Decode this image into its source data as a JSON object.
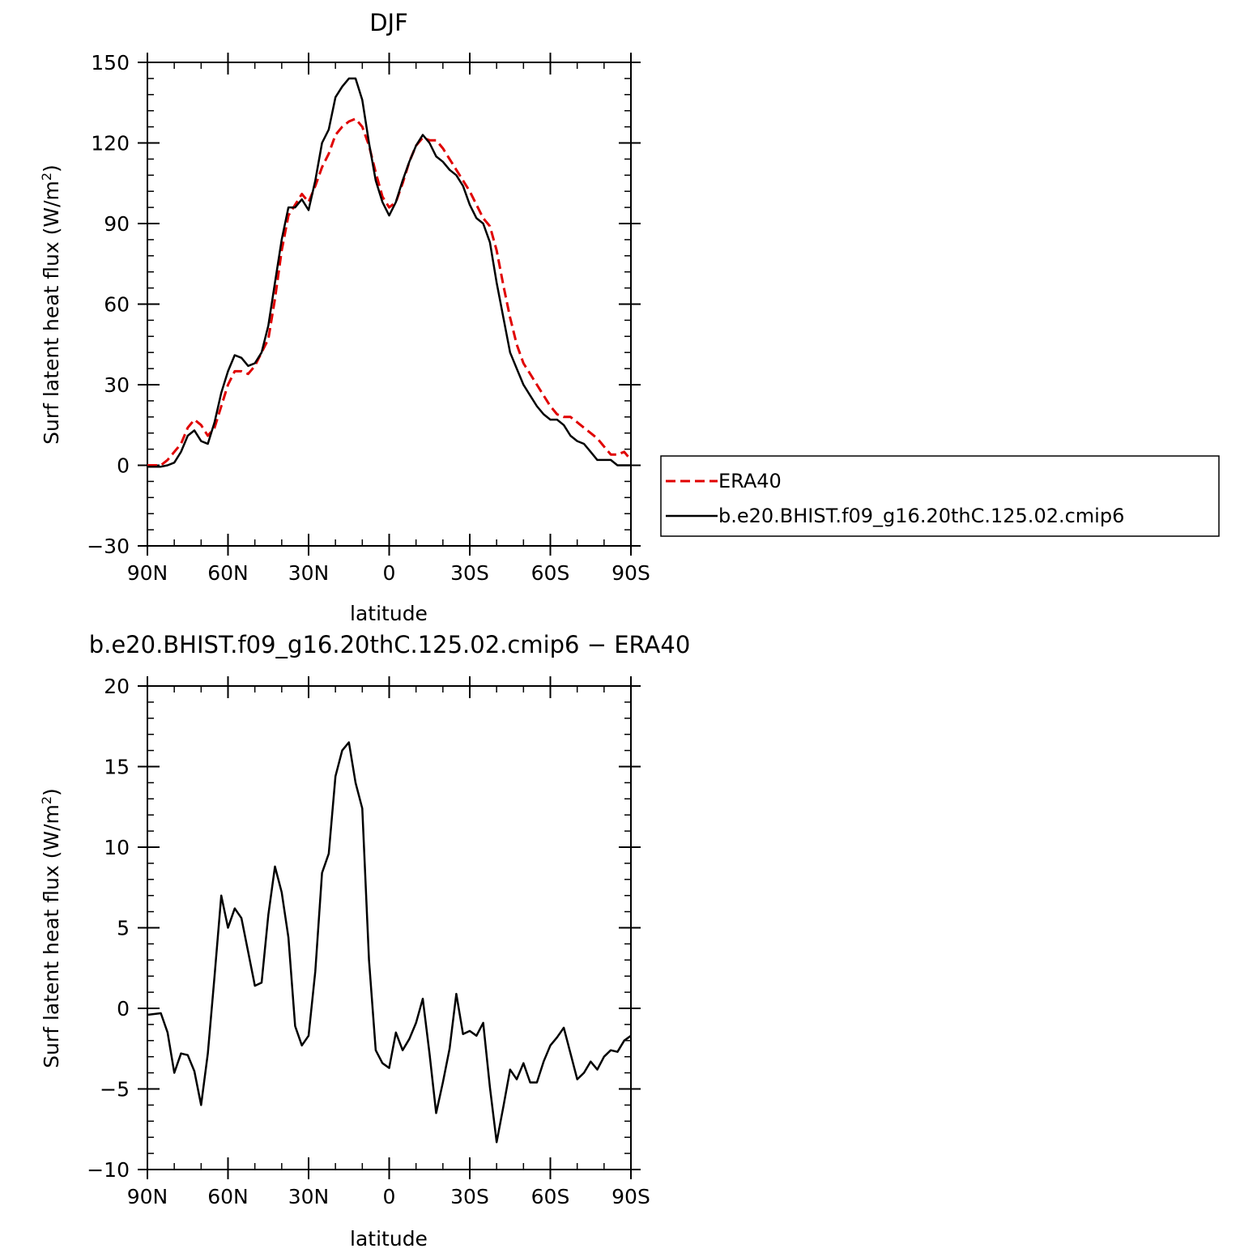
{
  "chart_data": [
    {
      "type": "line",
      "title": "DJF",
      "xlabel": "latitude",
      "ylabel_prefix": "Surf latent heat flux (W/m",
      "ylabel_sup": "2",
      "ylabel_suffix": ")",
      "xlim": [
        90,
        -90
      ],
      "ylim": [
        -30,
        150
      ],
      "xticks": [
        {
          "value": 90,
          "label": "90N"
        },
        {
          "value": 60,
          "label": "60N"
        },
        {
          "value": 30,
          "label": "30N"
        },
        {
          "value": 0,
          "label": "0"
        },
        {
          "value": -30,
          "label": "30S"
        },
        {
          "value": -60,
          "label": "60S"
        },
        {
          "value": -90,
          "label": "90S"
        }
      ],
      "yticks": [
        {
          "value": -30,
          "label": "−30"
        },
        {
          "value": 0,
          "label": "0"
        },
        {
          "value": 30,
          "label": "30"
        },
        {
          "value": 60,
          "label": "60"
        },
        {
          "value": 90,
          "label": "90"
        },
        {
          "value": 120,
          "label": "120"
        },
        {
          "value": 150,
          "label": "150"
        }
      ],
      "legend": {
        "placement": "right"
      },
      "series": [
        {
          "name": "ERA40",
          "color": "#e00000",
          "dash": true,
          "x": [
            90,
            87.5,
            85,
            82.5,
            80,
            77.5,
            75,
            72.5,
            70,
            67.5,
            65,
            62.5,
            60,
            57.5,
            55,
            52.5,
            50,
            47.5,
            45,
            42.5,
            40,
            37.5,
            35,
            32.5,
            30,
            27.5,
            25,
            22.5,
            20,
            17.5,
            15,
            12.5,
            10,
            7.5,
            5,
            2.5,
            0,
            -2.5,
            -5,
            -7.5,
            -10,
            -12.5,
            -15,
            -17.5,
            -20,
            -22.5,
            -25,
            -27.5,
            -30,
            -32.5,
            -35,
            -37.5,
            -40,
            -42.5,
            -45,
            -47.5,
            -50,
            -52.5,
            -55,
            -57.5,
            -60,
            -62.5,
            -65,
            -67.5,
            -70,
            -72.5,
            -75,
            -77.5,
            -80,
            -82.5,
            -85,
            -87.5,
            -90
          ],
          "y": [
            0,
            0,
            0,
            2,
            5,
            8,
            14,
            17,
            15,
            11,
            14,
            22,
            30,
            35,
            35,
            34,
            37,
            42,
            47,
            62,
            80,
            93,
            97,
            101,
            98,
            104,
            111,
            116,
            123,
            126,
            128,
            129,
            126,
            119,
            109,
            100,
            96,
            98,
            105,
            113,
            119,
            122,
            121,
            121,
            118,
            114,
            110,
            106,
            102,
            97,
            92,
            89,
            80,
            67,
            55,
            45,
            38,
            34,
            30,
            26,
            22,
            19,
            18,
            18,
            16,
            14,
            12,
            10,
            7,
            4,
            4,
            5,
            2
          ],
          "y_display": ""
        },
        {
          "name": "b.e20.BHIST.f09_g16.20thC.125.02.cmip6",
          "color": "#000000",
          "dash": false,
          "x": [
            90,
            87.5,
            85,
            82.5,
            80,
            77.5,
            75,
            72.5,
            70,
            67.5,
            65,
            62.5,
            60,
            57.5,
            55,
            52.5,
            50,
            47.5,
            45,
            42.5,
            40,
            37.5,
            35,
            32.5,
            30,
            27.5,
            25,
            22.5,
            20,
            17.5,
            15,
            12.5,
            10,
            7.5,
            5,
            2.5,
            0,
            -2.5,
            -5,
            -7.5,
            -10,
            -12.5,
            -15,
            -17.5,
            -20,
            -22.5,
            -25,
            -27.5,
            -30,
            -32.5,
            -35,
            -37.5,
            -40,
            -42.5,
            -45,
            -47.5,
            -50,
            -52.5,
            -55,
            -57.5,
            -60,
            -62.5,
            -65,
            -67.5,
            -70,
            -72.5,
            -75,
            -77.5,
            -80,
            -82.5,
            -85,
            -87.5,
            -90
          ],
          "y": [
            -0.5,
            -0.5,
            -0.5,
            0,
            1,
            5,
            11,
            13,
            9,
            8,
            16,
            27,
            35,
            41,
            40,
            37,
            38,
            42,
            52,
            68,
            84,
            96,
            96,
            99,
            95,
            106,
            120,
            125,
            137,
            141,
            144,
            144,
            136,
            120,
            106,
            98,
            93,
            98,
            106,
            113,
            119,
            123,
            120,
            115,
            113,
            110,
            108,
            104,
            97,
            92,
            90,
            83,
            68,
            55,
            42,
            36,
            30,
            26,
            22,
            19,
            17,
            17,
            15,
            11,
            9,
            8,
            5,
            2,
            2,
            2,
            0,
            0,
            0
          ],
          "y_display": ""
        }
      ]
    },
    {
      "type": "line",
      "title": "b.e20.BHIST.f09_g16.20thC.125.02.cmip6 − ERA40",
      "xlabel": "latitude",
      "ylabel_prefix": "Surf latent heat flux (W/m",
      "ylabel_sup": "2",
      "ylabel_suffix": ")",
      "xlim": [
        90,
        -90
      ],
      "ylim": [
        -10,
        20
      ],
      "xticks": [
        {
          "value": 90,
          "label": "90N"
        },
        {
          "value": 60,
          "label": "60N"
        },
        {
          "value": 30,
          "label": "30N"
        },
        {
          "value": 0,
          "label": "0"
        },
        {
          "value": -30,
          "label": "30S"
        },
        {
          "value": -60,
          "label": "60S"
        },
        {
          "value": -90,
          "label": "90S"
        }
      ],
      "yticks": [
        {
          "value": -10,
          "label": "−10"
        },
        {
          "value": -5,
          "label": "−5"
        },
        {
          "value": 0,
          "label": "0"
        },
        {
          "value": 5,
          "label": "5"
        },
        {
          "value": 10,
          "label": "10"
        },
        {
          "value": 15,
          "label": "15"
        },
        {
          "value": 20,
          "label": "20"
        }
      ],
      "series": [
        {
          "color": "#000000",
          "dash": false,
          "x": [
            90,
            87.5,
            85,
            82.5,
            80,
            77.5,
            75,
            72.5,
            70,
            67.5,
            65,
            62.5,
            60,
            57.5,
            55,
            52.5,
            50,
            47.5,
            45,
            42.5,
            40,
            37.5,
            35,
            32.5,
            30,
            27.5,
            25,
            22.5,
            20,
            17.5,
            15,
            12.5,
            10,
            7.5,
            5,
            2.5,
            0,
            -2.5,
            -5,
            -7.5,
            -10,
            -12.5,
            -15,
            -17.5,
            -20,
            -22.5,
            -25,
            -27.5,
            -30,
            -32.5,
            -35,
            -37.5,
            -40,
            -42.5,
            -45,
            -47.5,
            -50,
            -52.5,
            -55,
            -57.5,
            -60,
            -62.5,
            -65,
            -67.5,
            -70,
            -72.5,
            -75,
            -77.5,
            -80,
            -82.5,
            -85,
            -87.5,
            -90
          ],
          "y": [
            -0.4,
            -0.35,
            -0.3,
            -1.5,
            -4,
            -2.8,
            -2.9,
            -3.9,
            -6,
            -2.8,
            2,
            7,
            5,
            6.2,
            5.6,
            3.5,
            1.4,
            1.6,
            5.8,
            8.8,
            7.2,
            4.4,
            -1.1,
            -2.3,
            -1.7,
            2.3,
            8.4,
            9.6,
            14.4,
            16,
            16.5,
            14,
            12.4,
            3,
            -2.6,
            -3.4,
            -3.7,
            -1.5,
            -2.6,
            -1.9,
            -0.9,
            0.6,
            -2.8,
            -6.5,
            -4.6,
            -2.5,
            0.9,
            -1.6,
            -1.4,
            -1.7,
            -0.9,
            -4.9,
            -8.3,
            -6.1,
            -3.8,
            -4.4,
            -3.4,
            -4.6,
            -4.6,
            -3.3,
            -2.3,
            -1.8,
            -1.2,
            -2.8,
            -4.4,
            -4,
            -3.3,
            -3.8,
            -3,
            -2.6,
            -2.7,
            -2,
            -1.7
          ],
          "y_display": ""
        }
      ]
    }
  ]
}
